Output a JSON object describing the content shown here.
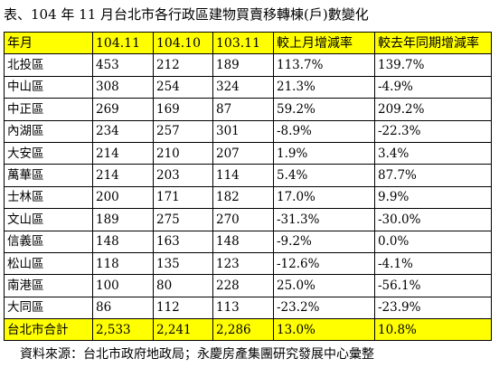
{
  "title": "表、104 年 11 月台北市各行政區建物買賣移轉棟(戶)數變化",
  "table": {
    "headers": [
      "年月",
      "104.11",
      "104.10",
      "103.11",
      "較上月增減率",
      "較去年同期增減率"
    ],
    "rows": [
      [
        "北投區",
        "453",
        "212",
        "189",
        "113.7%",
        "139.7%"
      ],
      [
        "中山區",
        "308",
        "254",
        "324",
        "21.3%",
        "-4.9%"
      ],
      [
        "中正區",
        "269",
        "169",
        "87",
        "59.2%",
        "209.2%"
      ],
      [
        "內湖區",
        "234",
        "257",
        "301",
        "-8.9%",
        "-22.3%"
      ],
      [
        "大安區",
        "214",
        "210",
        "207",
        "1.9%",
        "3.4%"
      ],
      [
        "萬華區",
        "214",
        "203",
        "114",
        "5.4%",
        "87.7%"
      ],
      [
        "士林區",
        "200",
        "171",
        "182",
        "17.0%",
        "9.9%"
      ],
      [
        "文山區",
        "189",
        "275",
        "270",
        "-31.3%",
        "-30.0%"
      ],
      [
        "信義區",
        "148",
        "163",
        "148",
        "-9.2%",
        "0.0%"
      ],
      [
        "松山區",
        "118",
        "135",
        "123",
        "-12.6%",
        "-4.1%"
      ],
      [
        "南港區",
        "100",
        "80",
        "228",
        "25.0%",
        "-56.1%"
      ],
      [
        "大同區",
        "86",
        "112",
        "113",
        "-23.2%",
        "-23.9%"
      ]
    ],
    "total": [
      "台北市合計",
      "2,533",
      "2,241",
      "2,286",
      "13.0%",
      "10.8%"
    ]
  },
  "source": "資料來源：台北市政府地政局；永慶房產集團研究發展中心彙整",
  "colors": {
    "highlight": "#ffff00",
    "border": "#000000"
  }
}
